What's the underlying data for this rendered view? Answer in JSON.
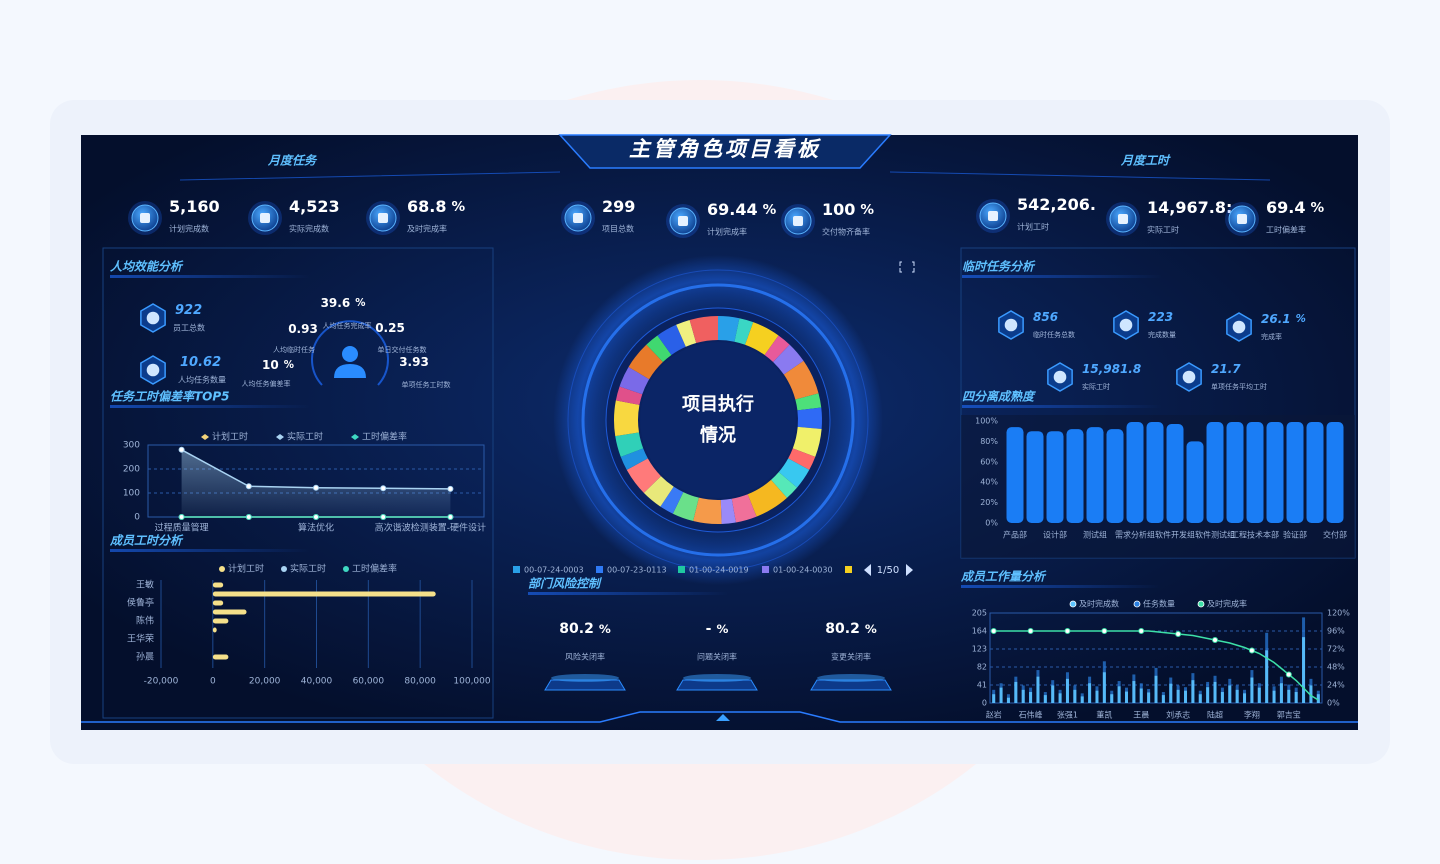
{
  "header": {
    "title": "主管角色项目看板",
    "left": "月度任务",
    "right": "月度工时"
  },
  "kpis": {
    "left": [
      {
        "value": "5,160",
        "label": "计划完成数"
      },
      {
        "value": "4,523",
        "label": "实际完成数"
      },
      {
        "value": "68.8",
        "unit": "%",
        "label": "及时完成率"
      }
    ],
    "center": [
      {
        "value": "299",
        "label": "项目总数"
      },
      {
        "value": "69.44",
        "unit": "%",
        "label": "计划完成率"
      },
      {
        "value": "100",
        "unit": "%",
        "label": "交付物齐备率"
      }
    ],
    "right": [
      {
        "value": "542,206.",
        "label": "计划工时"
      },
      {
        "value": "14,967.8:",
        "label": "实际工时"
      },
      {
        "value": "69.4",
        "unit": "%",
        "label": "工时偏差率"
      }
    ]
  },
  "efficiency": {
    "title": "人均效能分析",
    "stats": [
      {
        "value": "922",
        "label": "员工总数"
      },
      {
        "value": "10.62",
        "label": "人均任务数量"
      }
    ],
    "ring": {
      "top": {
        "value": "39.6",
        "unit": "%",
        "label": "人均任务完成率"
      },
      "left": {
        "value": "0.93",
        "label": "人均临时任务"
      },
      "right": {
        "value": "0.25",
        "label": "单日交付任务数"
      },
      "bottom_left": {
        "value": "10",
        "unit": "%",
        "label": "人均任务偏差率"
      },
      "bottom_right": {
        "value": "3.93",
        "label": "单项任务工时数"
      }
    }
  },
  "deviation": {
    "type": "line",
    "title": "任务工时偏差率TOP5",
    "categories": [
      "过程质量管理",
      null,
      "算法优化",
      null,
      "高次谐波检测装置-硬件设计"
    ],
    "series": [
      {
        "name": "计划工时",
        "color": "#f2d27a",
        "values": [
          0,
          0,
          0,
          0,
          0
        ]
      },
      {
        "name": "实际工时",
        "color": "#a9d3f2",
        "values": [
          280,
          128,
          122,
          120,
          117
        ]
      },
      {
        "name": "工时偏差率",
        "color": "#3fd8c2",
        "values": [
          0,
          0,
          0,
          0,
          0
        ]
      }
    ],
    "ylim": [
      0,
      300
    ],
    "yticks": [
      0,
      100,
      200,
      300
    ],
    "grid": true
  },
  "member_hours": {
    "type": "hbar",
    "title": "成员工时分析",
    "categories": [
      "王敏",
      null,
      "侯鲁亭",
      null,
      "陈伟",
      null,
      "王华荣",
      null,
      "孙晨"
    ],
    "series": [
      {
        "name": "计划工时",
        "color": "#f5e08a",
        "values": [
          4000,
          86000,
          4000,
          13000,
          6000,
          1500,
          0,
          0,
          6000
        ]
      },
      {
        "name": "实际工时",
        "color": "#a9d3f2",
        "values": [
          0,
          0,
          0,
          0,
          0,
          0,
          0,
          0,
          0
        ]
      },
      {
        "name": "工时偏差率",
        "color": "#3fd8c2",
        "values": [
          0,
          0,
          0,
          0,
          0,
          0,
          0,
          0,
          0
        ]
      }
    ],
    "xlim": [
      -20000,
      100000
    ],
    "xticks": [
      {
        "value": -20000,
        "label": "-20,000"
      },
      0,
      {
        "value": 20000,
        "label": "20,000"
      },
      {
        "value": 40000,
        "label": "40,000"
      },
      {
        "value": 60000,
        "label": "60,000"
      },
      {
        "value": 80000,
        "label": "80,000"
      },
      {
        "value": 100000,
        "label": "100,000"
      }
    ],
    "grid": true
  },
  "execution": {
    "type": "donut",
    "title_lines": [
      "项目执行",
      "情况"
    ],
    "values": [
      3,
      2,
      4,
      2,
      3,
      5,
      2,
      3,
      4,
      2,
      3,
      2,
      5,
      3,
      2,
      4,
      3,
      2,
      3,
      4,
      2,
      3,
      5,
      2,
      3,
      4,
      2,
      3,
      2,
      4
    ],
    "colors": [
      "#29a0e8",
      "#3ad6c4",
      "#f5d020",
      "#e85a9a",
      "#8a7af0",
      "#f08a3a",
      "#4de07a",
      "#2f6af5",
      "#f0f06a",
      "#ff6a6a",
      "#38c8f0",
      "#56e8b8",
      "#f5b820",
      "#f0709a",
      "#9a8af8",
      "#f59a4a",
      "#6ae08a",
      "#3a7af5",
      "#e8e87a",
      "#ff7a7a",
      "#2090e0",
      "#30d0b8",
      "#f8d840",
      "#e0508a",
      "#7a6ae8",
      "#e87a2a",
      "#40d870",
      "#2a60e8",
      "#f0f080",
      "#f06060"
    ],
    "legend": [
      {
        "name": "00-07-24-0003",
        "color": "#29a0e8"
      },
      {
        "name": "00-07-23-0113",
        "color": "#2f7af5"
      },
      {
        "name": "01-00-24-0019",
        "color": "#1fc8a0"
      },
      {
        "name": "01-00-24-0030",
        "color": "#8a7af0"
      },
      {
        "name": null,
        "color": "#f5d020"
      }
    ],
    "page": "1/50"
  },
  "risk": {
    "title": "部门风险控制",
    "items": [
      {
        "value": "80.2",
        "unit": "%",
        "label": "风险关闭率"
      },
      {
        "value": "-",
        "unit": "%",
        "label": "问题关闭率"
      },
      {
        "value": "80.2",
        "unit": "%",
        "label": "变更关闭率"
      }
    ]
  },
  "temp_tasks": {
    "title": "临时任务分析",
    "items": [
      {
        "value": "856",
        "label": "临时任务总数"
      },
      {
        "value": "223",
        "label": "完成数量"
      },
      {
        "value": "26.1",
        "unit": "%",
        "label": "完成率"
      },
      {
        "value": "15,981.8",
        "label": "实际工时"
      },
      {
        "value": "21.7",
        "label": "单项任务平均工时"
      }
    ]
  },
  "maturity": {
    "type": "bar",
    "title": "四分离成熟度",
    "categories": [
      "产品部",
      null,
      "设计部",
      null,
      "测试组",
      null,
      "需求分析组",
      null,
      "软件开发组",
      null,
      "软件测试组",
      null,
      "工程技术本部",
      null,
      "验证部",
      null,
      "交付部"
    ],
    "values": [
      94,
      90,
      90,
      92,
      94,
      92,
      99,
      99,
      97,
      80,
      99,
      99,
      99,
      99,
      99,
      99,
      99
    ],
    "color": "#1a7df5",
    "ylim": [
      0,
      100
    ],
    "yticks": [
      {
        "value": 0,
        "label": "0%"
      },
      {
        "value": 20,
        "label": "20%"
      },
      {
        "value": 40,
        "label": "40%"
      },
      {
        "value": 60,
        "label": "60%"
      },
      {
        "value": 80,
        "label": "80%"
      },
      {
        "value": 100,
        "label": "100%"
      }
    ]
  },
  "workload": {
    "type": "bar-line",
    "title": "成员工作量分析",
    "categories": [
      "赵岩",
      null,
      null,
      null,
      null,
      "石伟峰",
      null,
      null,
      null,
      null,
      "张强1",
      null,
      null,
      null,
      null,
      "董凯",
      null,
      null,
      null,
      null,
      "王晨",
      null,
      null,
      null,
      null,
      "刘承志",
      null,
      null,
      null,
      null,
      "陆超",
      null,
      null,
      null,
      null,
      "李翔",
      null,
      null,
      null,
      null,
      "郭吉宝",
      null,
      null,
      null,
      null
    ],
    "series": [
      {
        "name": "及时完成数",
        "color": "#5cc4ff",
        "values": [
          20,
          35,
          12,
          48,
          30,
          25,
          60,
          18,
          40,
          22,
          55,
          30,
          15,
          45,
          28,
          70,
          20,
          38,
          26,
          50,
          33,
          24,
          62,
          18,
          44,
          30,
          28,
          52,
          20,
          36,
          48,
          25,
          40,
          30,
          22,
          58,
          35,
          120,
          28,
          45,
          30,
          25,
          150,
          40,
          20
        ]
      },
      {
        "name": "任务数量",
        "color": "#2a7fe0",
        "values": [
          30,
          45,
          20,
          60,
          40,
          35,
          75,
          25,
          52,
          30,
          70,
          40,
          22,
          60,
          38,
          95,
          28,
          50,
          35,
          65,
          45,
          32,
          80,
          25,
          58,
          40,
          36,
          68,
          28,
          48,
          62,
          35,
          55,
          40,
          30,
          75,
          45,
          160,
          38,
          60,
          42,
          35,
          195,
          55,
          28
        ]
      },
      {
        "name": "及时完成率",
        "color": "#3de0a8",
        "axis": "y2",
        "values": [
          96,
          96,
          96,
          96,
          96,
          96,
          96,
          96,
          96,
          96,
          96,
          96,
          96,
          96,
          96,
          96,
          96,
          96,
          96,
          96,
          96,
          96,
          95,
          94,
          93,
          92,
          91,
          90,
          88,
          86,
          84,
          82,
          80,
          77,
          74,
          70,
          66,
          60,
          54,
          46,
          38,
          30,
          20,
          10,
          4
        ]
      }
    ],
    "ylim": [
      0,
      205
    ],
    "yticks": [
      0,
      41,
      82,
      123,
      164,
      205
    ],
    "y2lim": [
      0,
      120
    ],
    "y2ticks": [
      {
        "value": 0,
        "label": "0%"
      },
      {
        "value": 24,
        "label": "24%"
      },
      {
        "value": 48,
        "label": "48%"
      },
      {
        "value": 72,
        "label": "72%"
      },
      {
        "value": 96,
        "label": "96%"
      },
      {
        "value": 120,
        "label": "120%"
      }
    ],
    "grid": true
  }
}
